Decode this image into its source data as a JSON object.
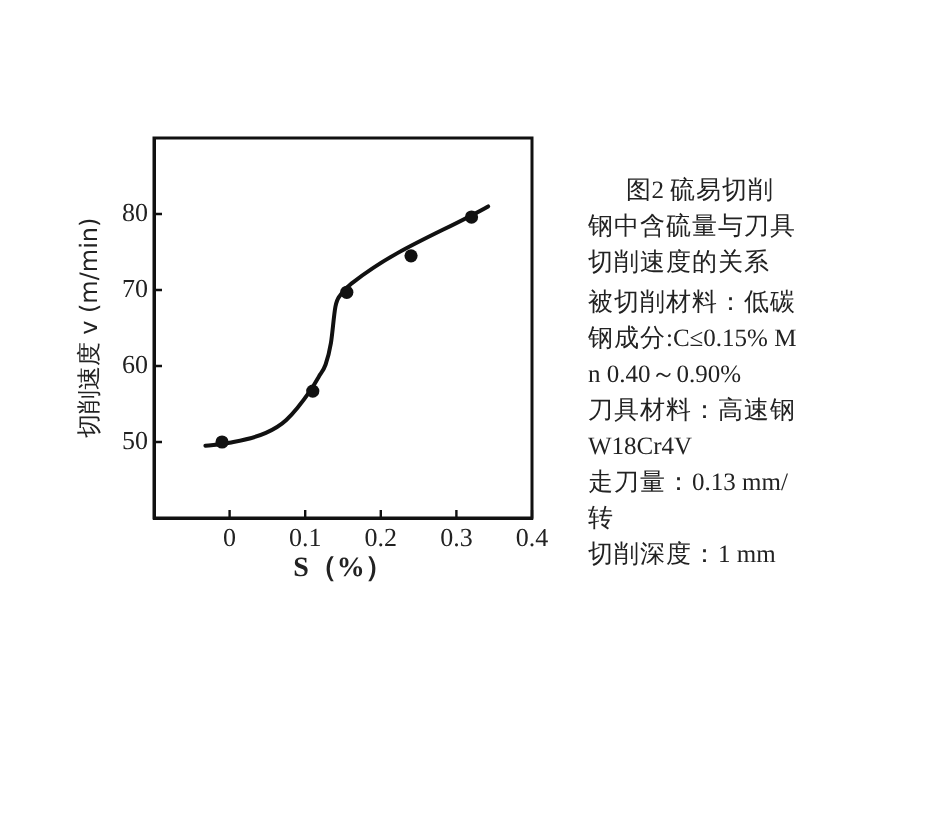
{
  "chart_data": {
    "type": "line",
    "title": "图2  硫易切削钢中含硫量与刀具切削速度的关系",
    "xlabel": "S（%）",
    "ylabel": "切削速度 v (m/min)",
    "xlim": [
      -0.1,
      0.4
    ],
    "xticks": [
      0,
      0.1,
      0.2,
      0.3,
      0.4
    ],
    "ylim": [
      40,
      90
    ],
    "yticks": [
      50,
      60,
      70,
      80
    ],
    "series": [
      {
        "type": "scatter",
        "marker": "circle",
        "color": "#111111",
        "x": [
          -0.01,
          0.11,
          0.155,
          0.24,
          0.32
        ],
        "values": [
          50,
          56.7,
          69.7,
          74.5,
          79.6
        ]
      },
      {
        "marker": "none",
        "color": "#111111",
        "x": [
          -0.032,
          0,
          0.048,
          0.075,
          0.107,
          0.118,
          0.127,
          0.134,
          0.14,
          0.147,
          0.162,
          0.342
        ],
        "values": [
          49.5,
          49.9,
          51.2,
          52.9,
          56.8,
          58.6,
          60.2,
          63.0,
          67.8,
          69.4,
          70.9,
          81.0
        ]
      }
    ],
    "annotations": [
      "被切削材料：低碳钢成分:C≤0.15% Mn 0.40～0.90%",
      "刀具材料：高速钢 W18Cr4V",
      "走刀量：0.13 mm/转",
      "切削深度：1 mm"
    ]
  }
}
